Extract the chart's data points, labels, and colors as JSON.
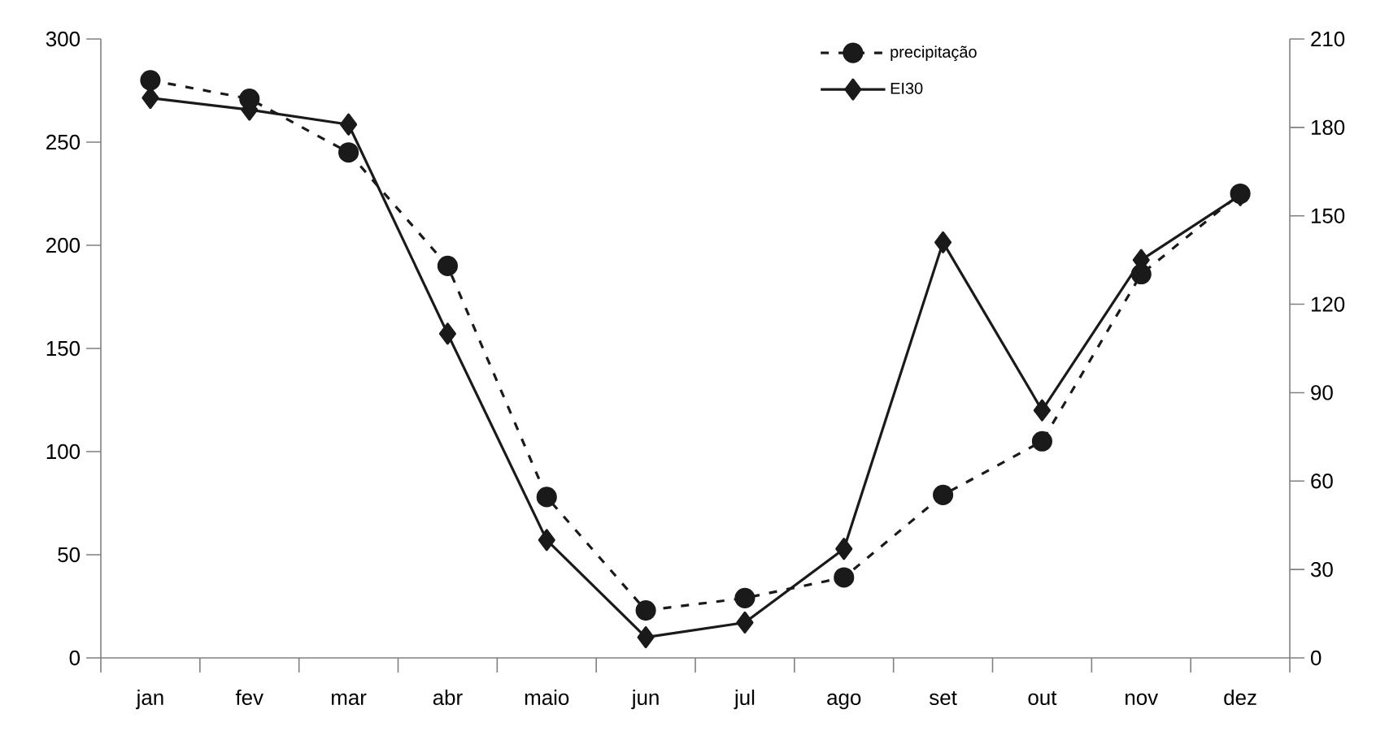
{
  "chart_data": {
    "type": "line",
    "categories": [
      "jan",
      "fev",
      "mar",
      "abr",
      "maio",
      "jun",
      "jul",
      "ago",
      "set",
      "out",
      "nov",
      "dez"
    ],
    "series": [
      {
        "name": "precipitação",
        "color": "#1a1a1a",
        "marker": "circle",
        "line_style": "dashed",
        "values": [
          280,
          271,
          245,
          190,
          78,
          23,
          29,
          39,
          79,
          105,
          186,
          225
        ]
      },
      {
        "name": "EI30",
        "color": "#1a1a1a",
        "marker": "diamond",
        "line_style": "solid",
        "axis": "y2",
        "values": [
          190,
          186,
          181,
          110,
          40,
          7,
          12,
          37,
          141,
          84,
          135,
          157
        ]
      }
    ],
    "ylim": [
      0,
      300
    ],
    "yticks": [
      0,
      50,
      100,
      150,
      200,
      250,
      300
    ],
    "y2lim": [
      0,
      210
    ],
    "y2ticks": [
      0,
      30,
      60,
      90,
      120,
      150,
      180,
      210
    ],
    "grid": false,
    "legend": "top right"
  }
}
